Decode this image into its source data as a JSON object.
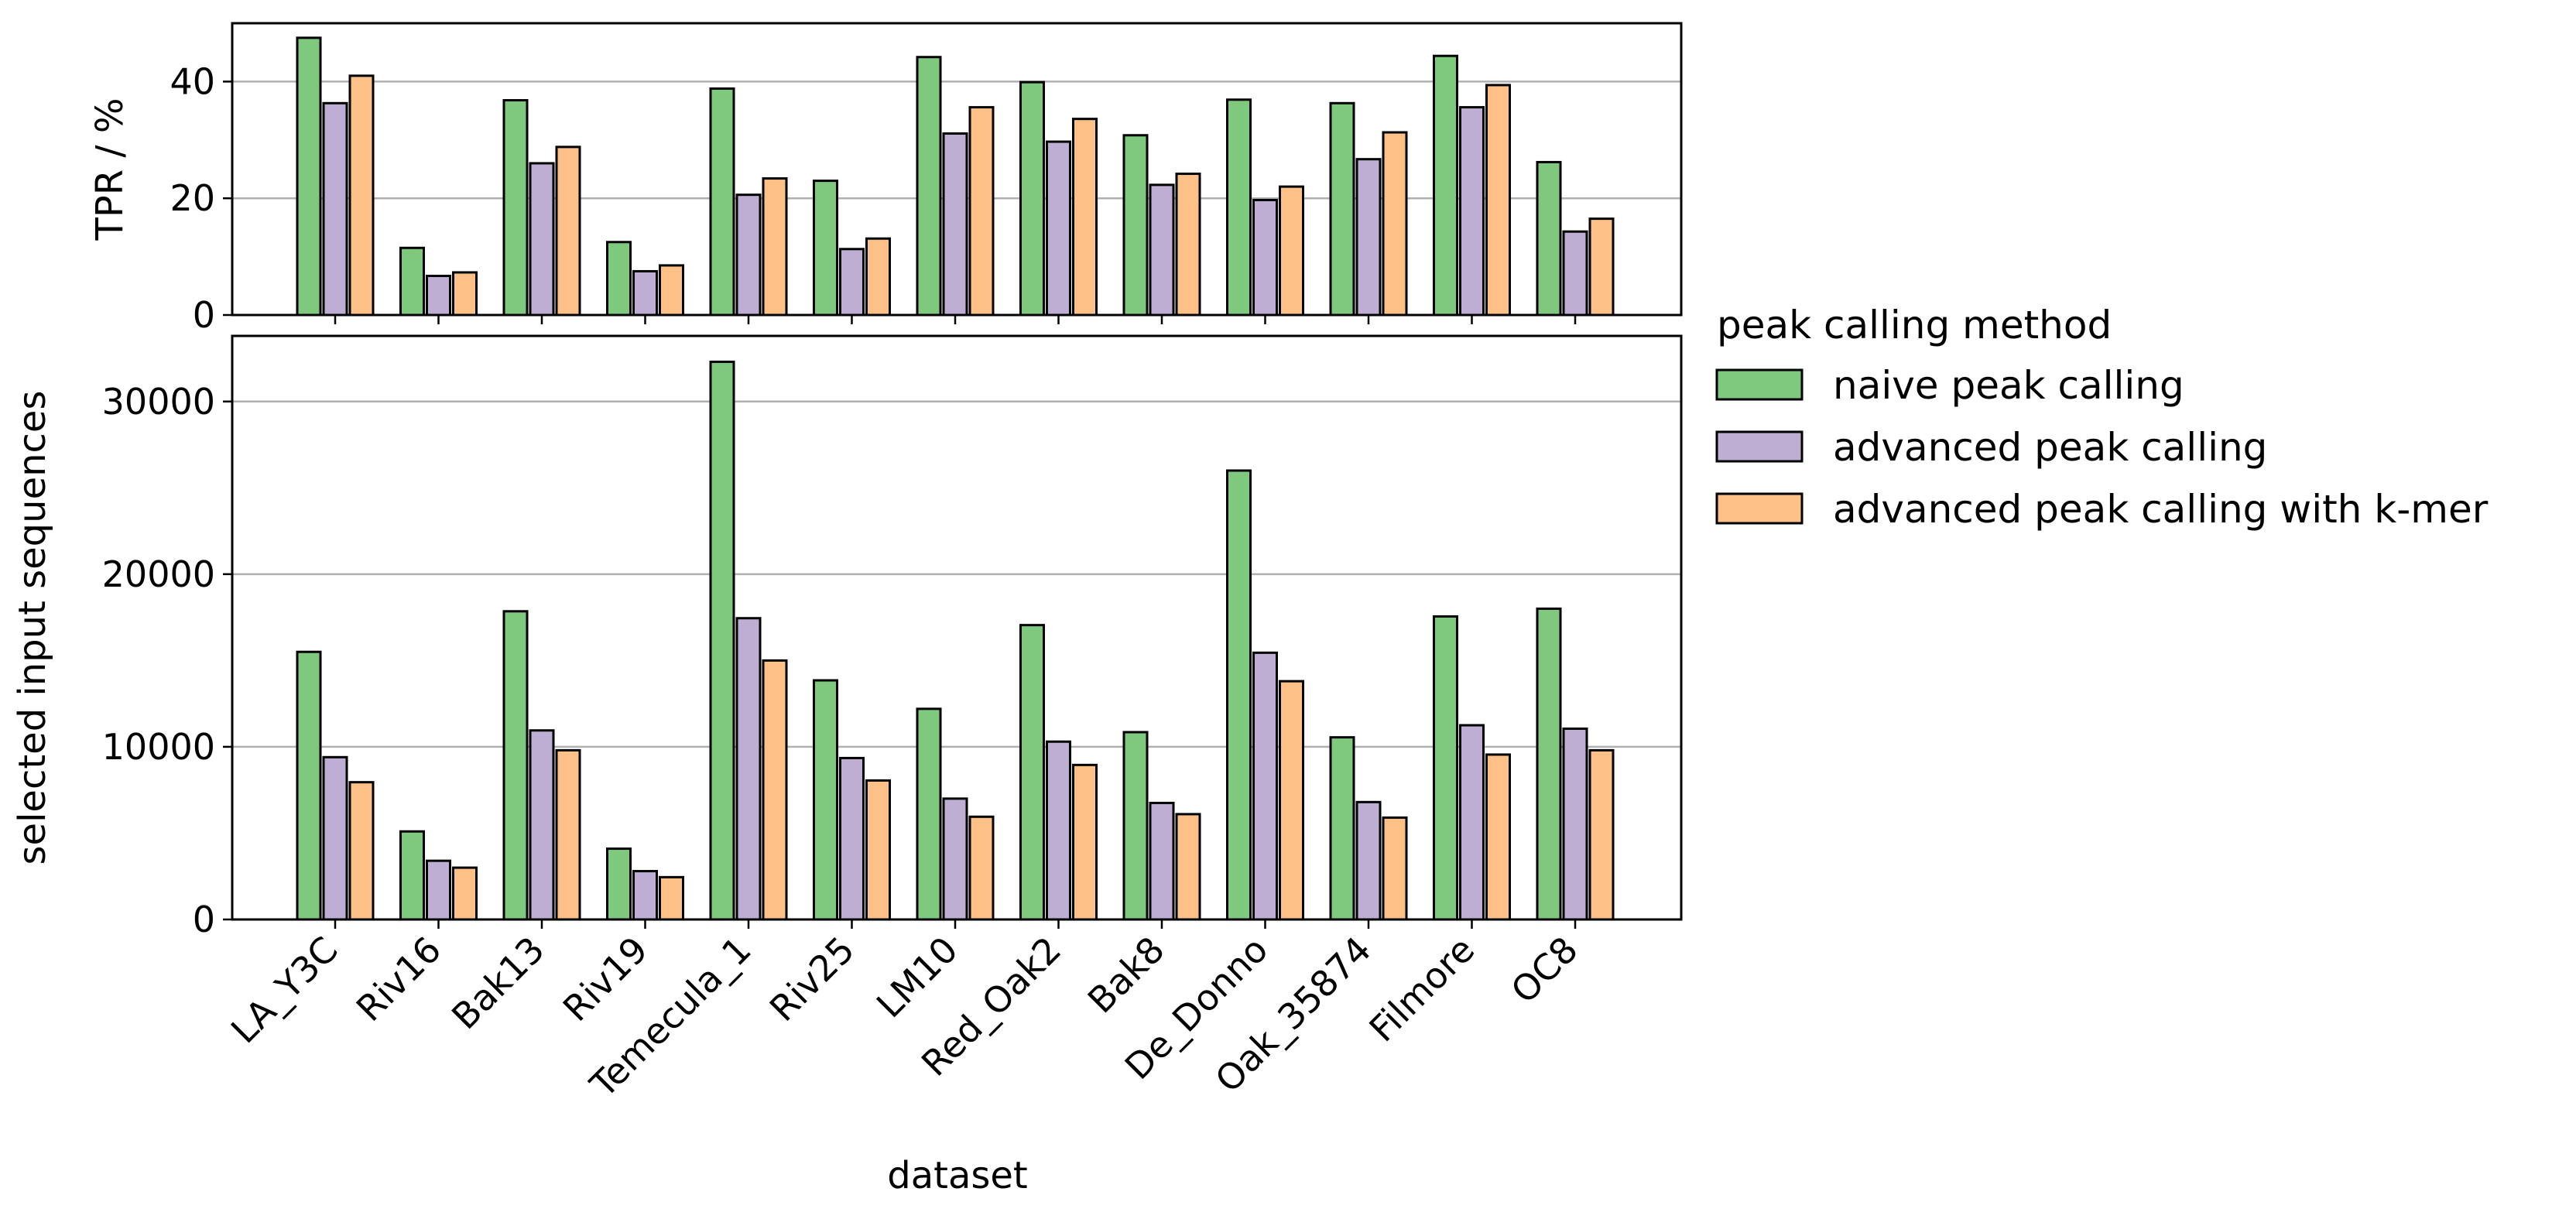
{
  "chart_data": [
    {
      "type": "bar",
      "categories": [
        "LA_Y3C",
        "Riv16",
        "Bak13",
        "Riv19",
        "Temecula_1",
        "Riv25",
        "LM10",
        "Red_Oak2",
        "Bak8",
        "De_Donno",
        "Oak_35874",
        "Filmore",
        "OC8"
      ],
      "series": [
        {
          "name": "naive peak calling",
          "color": "#7fc97f",
          "values": [
            47.5,
            11.5,
            36.8,
            12.5,
            38.8,
            23.0,
            44.2,
            39.9,
            30.8,
            36.9,
            36.3,
            44.4,
            26.2
          ]
        },
        {
          "name": "advanced peak calling",
          "color": "#beaed4",
          "values": [
            36.3,
            6.7,
            26.0,
            7.5,
            20.6,
            11.3,
            31.1,
            29.7,
            22.3,
            19.7,
            26.7,
            35.6,
            14.3
          ]
        },
        {
          "name": "advanced peak calling with k-mer",
          "color": "#fdc086",
          "values": [
            41.0,
            7.3,
            28.8,
            8.5,
            23.4,
            13.1,
            35.6,
            33.6,
            24.2,
            22.0,
            31.3,
            39.4,
            16.5
          ]
        }
      ],
      "ylabel": "TPR / %",
      "ylim": [
        0,
        50
      ],
      "yticks": [
        "0",
        "20",
        "40"
      ],
      "ytick_values": [
        0,
        20,
        40
      ],
      "grid": "horizontal"
    },
    {
      "type": "bar",
      "categories": [
        "LA_Y3C",
        "Riv16",
        "Bak13",
        "Riv19",
        "Temecula_1",
        "Riv25",
        "LM10",
        "Red_Oak2",
        "Bak8",
        "De_Donno",
        "Oak_35874",
        "Filmore",
        "OC8"
      ],
      "series": [
        {
          "name": "naive peak calling",
          "color": "#7fc97f",
          "values": [
            15500,
            5100,
            17850,
            4100,
            32300,
            13850,
            12200,
            17050,
            10850,
            26000,
            10550,
            17550,
            18000
          ]
        },
        {
          "name": "advanced peak calling",
          "color": "#beaed4",
          "values": [
            9400,
            3400,
            10950,
            2800,
            17450,
            9350,
            7000,
            10300,
            6750,
            15450,
            6800,
            11250,
            11050
          ]
        },
        {
          "name": "advanced peak calling with k-mer",
          "color": "#fdc086",
          "values": [
            7950,
            3000,
            9800,
            2450,
            15000,
            8050,
            5950,
            8950,
            6100,
            13800,
            5900,
            9550,
            9800
          ]
        }
      ],
      "xlabel": "dataset",
      "ylabel": "selected input sequences",
      "ylim": [
        0,
        33800
      ],
      "yticks": [
        "0",
        "10000",
        "20000",
        "30000"
      ],
      "ytick_values": [
        0,
        10000,
        20000,
        30000
      ],
      "grid": "horizontal"
    }
  ],
  "legend": {
    "title": "peak calling method",
    "placement": "right",
    "items": [
      "naive peak calling",
      "advanced peak calling",
      "advanced peak calling with k-mer"
    ]
  }
}
